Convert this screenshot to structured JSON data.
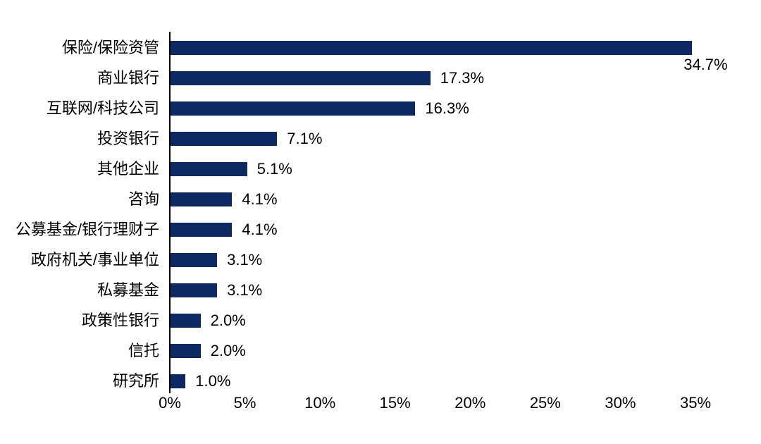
{
  "chart_data": {
    "type": "bar",
    "orientation": "horizontal",
    "title": "",
    "xlabel": "",
    "ylabel": "",
    "categories": [
      "保险/保险资管",
      "商业银行",
      "互联网/科技公司",
      "投资银行",
      "其他企业",
      "咨询",
      "公募基金/银行理财子",
      "政府机关/事业单位",
      "私募基金",
      "政策性银行",
      "信托",
      "研究所"
    ],
    "values": [
      34.7,
      17.3,
      16.3,
      7.1,
      5.1,
      4.1,
      4.1,
      3.1,
      3.1,
      2.0,
      2.0,
      1.0
    ],
    "value_labels": [
      "34.7%",
      "17.3%",
      "16.3%",
      "7.1%",
      "5.1%",
      "4.1%",
      "4.1%",
      "3.1%",
      "3.1%",
      "2.0%",
      "2.0%",
      "1.0%"
    ],
    "x_ticks": [
      "0%",
      "5%",
      "10%",
      "15%",
      "20%",
      "25%",
      "30%",
      "35%"
    ],
    "x_tick_values": [
      0,
      5,
      10,
      15,
      20,
      25,
      30,
      35
    ],
    "xlim": [
      0,
      35
    ],
    "grid": false,
    "legend": null,
    "bar_color": "#0D2963",
    "axis_color": "#000000",
    "text_color": "#000000",
    "first_value_label_position": "below-bar-end"
  }
}
